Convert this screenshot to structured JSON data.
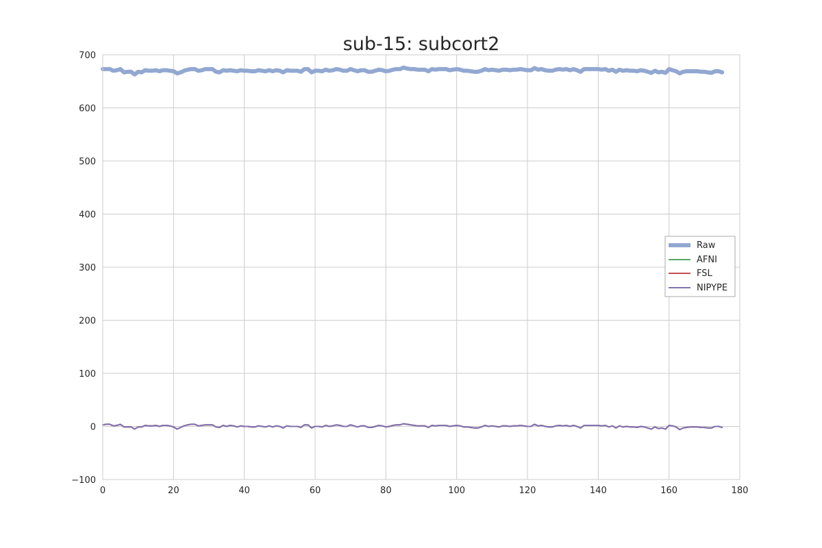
{
  "chart_data": {
    "type": "line",
    "title": "sub-15: subcort2",
    "xlabel": "",
    "ylabel": "",
    "xlim": [
      0,
      180
    ],
    "ylim": [
      -100,
      700
    ],
    "x_ticks": [
      0,
      20,
      40,
      60,
      80,
      100,
      120,
      140,
      160,
      180
    ],
    "y_ticks": [
      -100,
      0,
      100,
      200,
      300,
      400,
      500,
      600,
      700
    ],
    "y_tick_labels": [
      "−100",
      "0",
      "100",
      "200",
      "300",
      "400",
      "500",
      "600",
      "700"
    ],
    "grid": true,
    "legend_position": "center-right",
    "x": [
      0,
      1,
      2,
      3,
      4,
      5,
      6,
      7,
      8,
      9,
      10,
      11,
      12,
      13,
      14,
      15,
      16,
      17,
      18,
      19,
      20,
      21,
      22,
      23,
      24,
      25,
      26,
      27,
      28,
      29,
      30,
      31,
      32,
      33,
      34,
      35,
      36,
      37,
      38,
      39,
      40,
      41,
      42,
      43,
      44,
      45,
      46,
      47,
      48,
      49,
      50,
      51,
      52,
      53,
      54,
      55,
      56,
      57,
      58,
      59,
      60,
      61,
      62,
      63,
      64,
      65,
      66,
      67,
      68,
      69,
      70,
      71,
      72,
      73,
      74,
      75,
      76,
      77,
      78,
      79,
      80,
      81,
      82,
      83,
      84,
      85,
      86,
      87,
      88,
      89,
      90,
      91,
      92,
      93,
      94,
      95,
      96,
      97,
      98,
      99,
      100,
      101,
      102,
      103,
      104,
      105,
      106,
      107,
      108,
      109,
      110,
      111,
      112,
      113,
      114,
      115,
      116,
      117,
      118,
      119,
      120,
      121,
      122,
      123,
      124,
      125,
      126,
      127,
      128,
      129,
      130,
      131,
      132,
      133,
      134,
      135,
      136,
      137,
      138,
      139,
      140,
      141,
      142,
      143,
      144,
      145,
      146,
      147,
      148,
      149,
      150,
      151,
      152,
      153,
      154,
      155,
      156,
      157,
      158,
      159,
      160,
      161,
      162,
      163,
      164,
      165,
      166,
      167,
      168,
      169,
      170,
      171,
      172,
      173,
      174,
      175
    ],
    "series": [
      {
        "name": "Raw",
        "color": "#92a8d1",
        "width": 6,
        "values": [
          673,
          673,
          673,
          670,
          671,
          673,
          667,
          668,
          668,
          663,
          668,
          667,
          671,
          670,
          670,
          671,
          669,
          671,
          671,
          670,
          669,
          665,
          667,
          670,
          672,
          673,
          673,
          670,
          671,
          673,
          673,
          673,
          668,
          667,
          671,
          670,
          671,
          670,
          669,
          671,
          670,
          670,
          669,
          669,
          671,
          670,
          669,
          671,
          669,
          671,
          670,
          667,
          671,
          670,
          670,
          670,
          668,
          673,
          673,
          667,
          670,
          670,
          669,
          672,
          670,
          671,
          673,
          672,
          670,
          670,
          673,
          671,
          669,
          671,
          671,
          668,
          668,
          670,
          672,
          671,
          669,
          670,
          672,
          673,
          673,
          676,
          674,
          673,
          673,
          672,
          672,
          672,
          669,
          673,
          672,
          673,
          673,
          673,
          671,
          672,
          673,
          672,
          670,
          670,
          669,
          668,
          668,
          670,
          673,
          671,
          672,
          671,
          670,
          672,
          672,
          671,
          672,
          672,
          673,
          672,
          671,
          671,
          675,
          672,
          673,
          671,
          670,
          670,
          672,
          673,
          672,
          673,
          671,
          673,
          671,
          668,
          673,
          673,
          673,
          673,
          673,
          672,
          673,
          670,
          672,
          668,
          672,
          670,
          671,
          670,
          670,
          669,
          671,
          670,
          668,
          666,
          670,
          667,
          668,
          666,
          673,
          671,
          669,
          665,
          668,
          669,
          669,
          669,
          669,
          668,
          668,
          667,
          666,
          669,
          669,
          667
        ]
      },
      {
        "name": "AFNI",
        "color": "#55a868",
        "width": 2,
        "values": [
          3,
          4,
          4,
          1,
          2,
          4,
          -1,
          -1,
          -1,
          -5,
          -1,
          -1,
          2,
          1,
          1,
          2,
          0,
          2,
          2,
          1,
          -1,
          -5,
          -2,
          1,
          3,
          4,
          4,
          1,
          2,
          3,
          3,
          3,
          -1,
          -2,
          2,
          0,
          2,
          1,
          -1,
          1,
          0,
          0,
          -1,
          -1,
          1,
          0,
          -1,
          1,
          -1,
          1,
          0,
          -3,
          1,
          0,
          0,
          0,
          -2,
          3,
          3,
          -3,
          0,
          0,
          -1,
          2,
          0,
          1,
          3,
          2,
          0,
          0,
          3,
          1,
          -1,
          1,
          1,
          -2,
          -2,
          0,
          2,
          1,
          -1,
          0,
          2,
          3,
          3,
          5,
          4,
          3,
          2,
          1,
          1,
          1,
          -2,
          2,
          1,
          2,
          2,
          2,
          0,
          1,
          2,
          1,
          -1,
          -1,
          -2,
          -3,
          -3,
          -1,
          2,
          0,
          1,
          0,
          -1,
          1,
          1,
          0,
          1,
          1,
          2,
          1,
          0,
          0,
          4,
          1,
          2,
          0,
          -1,
          -1,
          1,
          2,
          1,
          2,
          0,
          2,
          0,
          -3,
          2,
          2,
          2,
          2,
          2,
          1,
          2,
          -1,
          1,
          -3,
          1,
          -1,
          0,
          -1,
          -1,
          -2,
          0,
          -1,
          -3,
          -5,
          -1,
          -4,
          -3,
          -5,
          2,
          1,
          -1,
          -6,
          -3,
          -2,
          -1,
          -1,
          -1,
          -2,
          -2,
          -3,
          -3,
          0,
          0,
          -2
        ]
      },
      {
        "name": "FSL",
        "color": "#c44e52",
        "width": 2,
        "values": [
          3,
          4,
          4,
          1,
          2,
          4,
          -1,
          -1,
          -1,
          -5,
          -1,
          -1,
          2,
          1,
          1,
          2,
          0,
          2,
          2,
          1,
          -1,
          -5,
          -2,
          1,
          3,
          4,
          4,
          1,
          2,
          3,
          3,
          3,
          -1,
          -2,
          2,
          0,
          2,
          1,
          -1,
          1,
          0,
          0,
          -1,
          -1,
          1,
          0,
          -1,
          1,
          -1,
          1,
          0,
          -3,
          1,
          0,
          0,
          0,
          -2,
          3,
          3,
          -3,
          0,
          0,
          -1,
          2,
          0,
          1,
          3,
          2,
          0,
          0,
          3,
          1,
          -1,
          1,
          1,
          -2,
          -2,
          0,
          2,
          1,
          -1,
          0,
          2,
          3,
          3,
          5,
          4,
          3,
          2,
          1,
          1,
          1,
          -2,
          2,
          1,
          2,
          2,
          2,
          0,
          1,
          2,
          1,
          -1,
          -1,
          -2,
          -3,
          -3,
          -1,
          2,
          0,
          1,
          0,
          -1,
          1,
          1,
          0,
          1,
          1,
          2,
          1,
          0,
          0,
          4,
          1,
          2,
          0,
          -1,
          -1,
          1,
          2,
          1,
          2,
          0,
          2,
          0,
          -3,
          2,
          2,
          2,
          2,
          2,
          1,
          2,
          -1,
          1,
          -3,
          1,
          -1,
          0,
          -1,
          -1,
          -2,
          0,
          -1,
          -3,
          -5,
          -1,
          -4,
          -3,
          -5,
          2,
          1,
          -1,
          -6,
          -3,
          -2,
          -1,
          -1,
          -1,
          -2,
          -2,
          -3,
          -3,
          0,
          0,
          -2
        ]
      },
      {
        "name": "NIPYPE",
        "color": "#8172b2",
        "width": 2,
        "values": [
          3,
          4,
          4,
          1,
          2,
          4,
          -1,
          -1,
          -1,
          -5,
          -1,
          -1,
          2,
          1,
          1,
          2,
          0,
          2,
          2,
          1,
          -1,
          -5,
          -2,
          1,
          3,
          4,
          4,
          1,
          2,
          3,
          3,
          3,
          -1,
          -2,
          2,
          0,
          2,
          1,
          -1,
          1,
          0,
          0,
          -1,
          -1,
          1,
          0,
          -1,
          1,
          -1,
          1,
          0,
          -3,
          1,
          0,
          0,
          0,
          -2,
          3,
          3,
          -3,
          0,
          0,
          -1,
          2,
          0,
          1,
          3,
          2,
          0,
          0,
          3,
          1,
          -1,
          1,
          1,
          -2,
          -2,
          0,
          2,
          1,
          -1,
          0,
          2,
          3,
          3,
          5,
          4,
          3,
          2,
          1,
          1,
          1,
          -2,
          2,
          1,
          2,
          2,
          2,
          0,
          1,
          2,
          1,
          -1,
          -1,
          -2,
          -3,
          -3,
          -1,
          2,
          0,
          1,
          0,
          -1,
          1,
          1,
          0,
          1,
          1,
          2,
          1,
          0,
          0,
          4,
          1,
          2,
          0,
          -1,
          -1,
          1,
          2,
          1,
          2,
          0,
          2,
          0,
          -3,
          2,
          2,
          2,
          2,
          2,
          1,
          2,
          -1,
          1,
          -3,
          1,
          -1,
          0,
          -1,
          -1,
          -2,
          0,
          -1,
          -3,
          -5,
          -1,
          -4,
          -3,
          -5,
          2,
          1,
          -1,
          -6,
          -3,
          -2,
          -1,
          -1,
          -1,
          -2,
          -2,
          -3,
          -3,
          0,
          0,
          -2
        ]
      }
    ]
  }
}
